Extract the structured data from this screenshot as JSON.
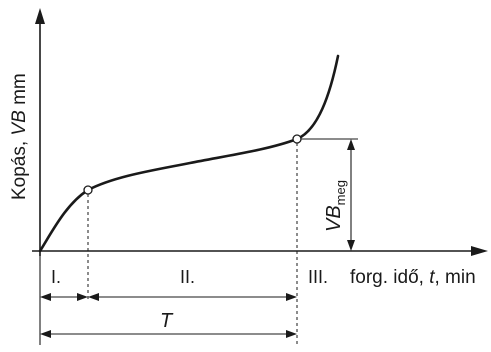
{
  "labels": {
    "y_axis_pre": "Kopás, ",
    "y_axis_var": "VB",
    "y_axis_unit": " mm",
    "x_axis_pre": "forg. idő, ",
    "x_axis_var": "t",
    "x_axis_unit": ", min",
    "zone_1": "I.",
    "zone_2": "II.",
    "zone_3": "III.",
    "tool_life": "T",
    "vb_main": "VB",
    "vb_sub": "meg"
  }
}
